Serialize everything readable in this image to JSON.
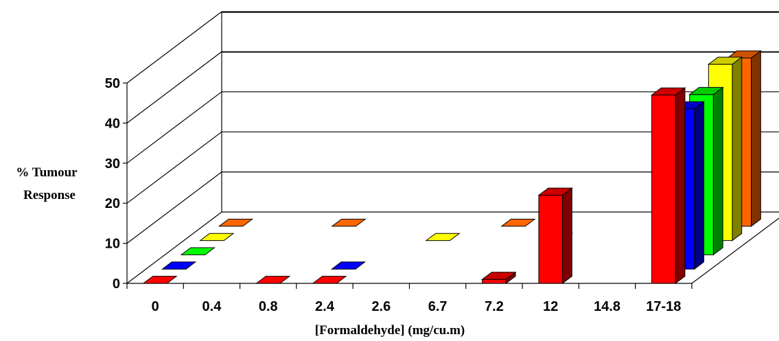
{
  "chart_data": {
    "type": "bar",
    "title": "",
    "xlabel": "[Formaldehyde] (mg/cu.m)",
    "ylabel_lines": [
      "% Tumour",
      "Response"
    ],
    "ylim": [
      0,
      50
    ],
    "yticks": [
      0,
      10,
      20,
      30,
      40,
      50
    ],
    "grid": true,
    "categories": [
      "0",
      "0.4",
      "0.8",
      "2.4",
      "2.6",
      "6.7",
      "7.2",
      "12",
      "14.8",
      "17-18"
    ],
    "series": [
      {
        "color": "#ff0000",
        "side": "#800000",
        "top": "#cc0000",
        "values": [
          0,
          null,
          0,
          0,
          null,
          null,
          1,
          22,
          null,
          47
        ]
      },
      {
        "color": "#0000ff",
        "side": "#000080",
        "top": "#0000cc",
        "values": [
          0,
          null,
          null,
          0,
          null,
          null,
          null,
          null,
          null,
          40
        ]
      },
      {
        "color": "#00ff00",
        "side": "#008000",
        "top": "#00cc00",
        "values": [
          0,
          null,
          null,
          null,
          null,
          null,
          null,
          null,
          null,
          40
        ]
      },
      {
        "color": "#ffff00",
        "side": "#808000",
        "top": "#cccc00",
        "values": [
          0,
          null,
          null,
          null,
          0,
          null,
          0,
          null,
          null,
          44
        ]
      },
      {
        "color": "#ff6600",
        "side": "#803300",
        "top": "#cc5200",
        "values": [
          0,
          null,
          0,
          null,
          null,
          0,
          null,
          null,
          null,
          42
        ]
      }
    ]
  }
}
